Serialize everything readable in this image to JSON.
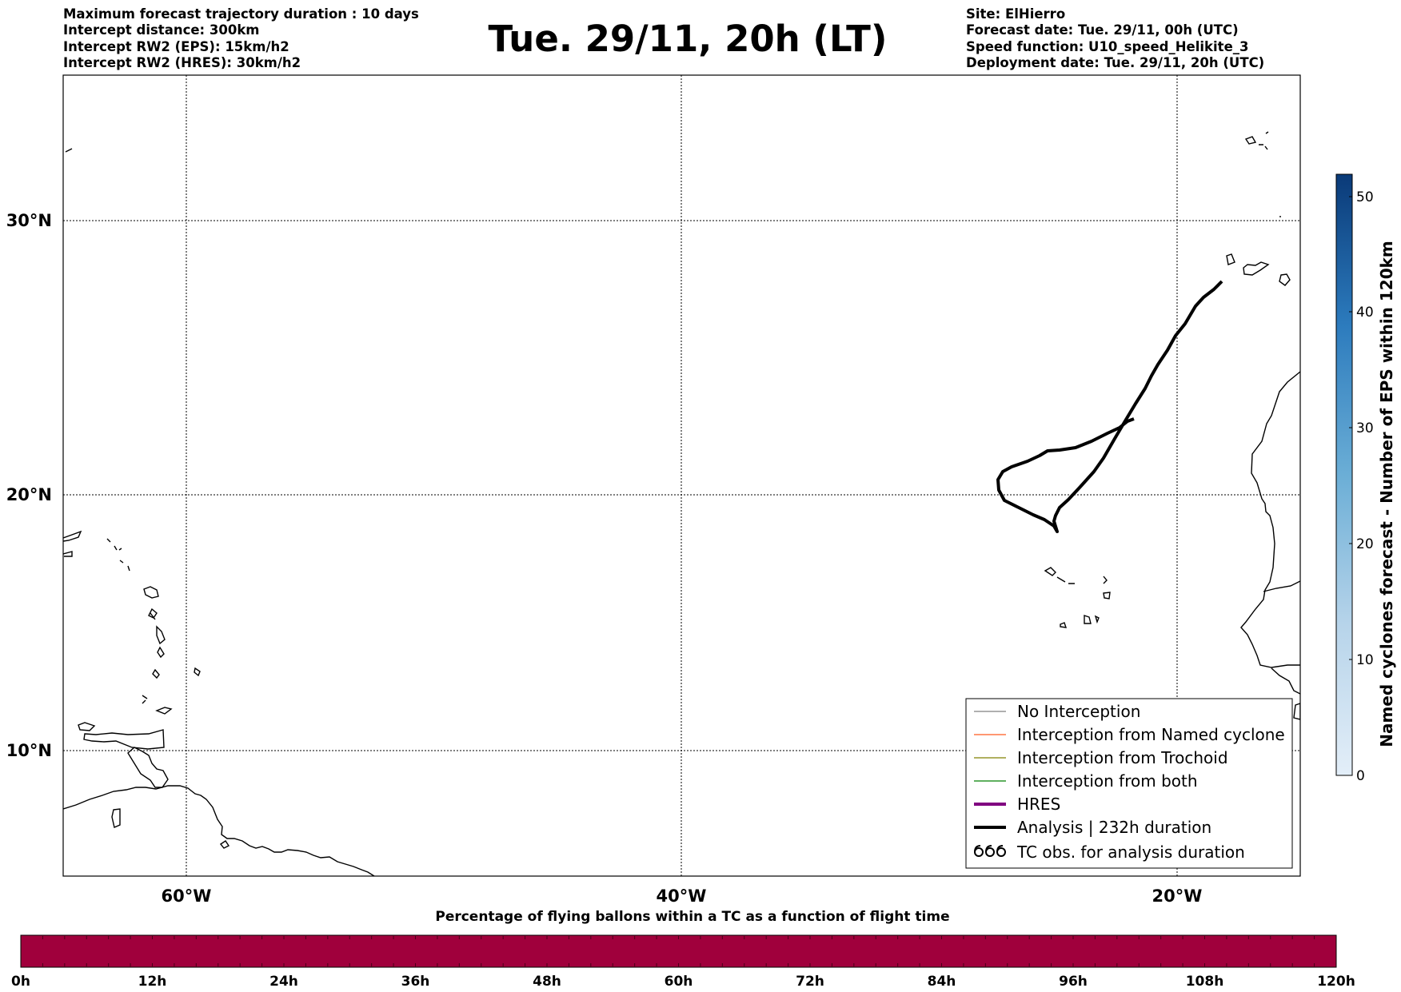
{
  "header": {
    "left_lines": [
      "Maximum forecast trajectory duration : 10 days",
      "Intercept distance: 300km",
      "Intercept RW2 (EPS):  15km/h2",
      "Intercept RW2 (HRES): 30km/h2"
    ],
    "title": "Tue. 29/11, 20h (LT)",
    "right_lines": [
      "Site: ElHierro",
      "Forecast date: Tue. 29/11, 00h (UTC)",
      "Speed function: U10_speed_Helikite_3",
      "Deployment date: Tue. 29/11, 20h (UTC)"
    ]
  },
  "map": {
    "lon_labels": [
      "60°W",
      "40°W",
      "20°W"
    ],
    "lat_labels": [
      "30°N",
      "20°N",
      "10°N"
    ],
    "analysis_track_color": "#000000"
  },
  "legend": {
    "items": [
      {
        "label": "No Interception",
        "color": "#808080",
        "style": "thin-line"
      },
      {
        "label": "Interception from Named cyclone",
        "color": "#ff5a1e",
        "style": "thin-line"
      },
      {
        "label": "Interception from Trochoid",
        "color": "#808000",
        "style": "thin-line"
      },
      {
        "label": "Interception from both",
        "color": "#008000",
        "style": "thin-line"
      },
      {
        "label": "HRES",
        "color": "#800080",
        "style": "thick-line"
      },
      {
        "label": "Analysis | 232h duration",
        "color": "#000000",
        "style": "thick-line"
      },
      {
        "label": "TC obs. for analysis duration",
        "color": "#000000",
        "style": "cyclone-symbols"
      }
    ]
  },
  "colorbar": {
    "title": "Named cyclones forecast - Number of EPS within 120km",
    "ticks": [
      "0",
      "10",
      "20",
      "30",
      "40",
      "50"
    ],
    "color_low": "#e3eef8",
    "color_high": "#0a3a78"
  },
  "time_bar": {
    "title": "Percentage of flying ballons within a TC as a function of flight time",
    "ticks": [
      "0h",
      "12h",
      "24h",
      "36h",
      "48h",
      "60h",
      "72h",
      "84h",
      "96h",
      "108h",
      "120h"
    ],
    "fill_color": "#a0003c"
  }
}
